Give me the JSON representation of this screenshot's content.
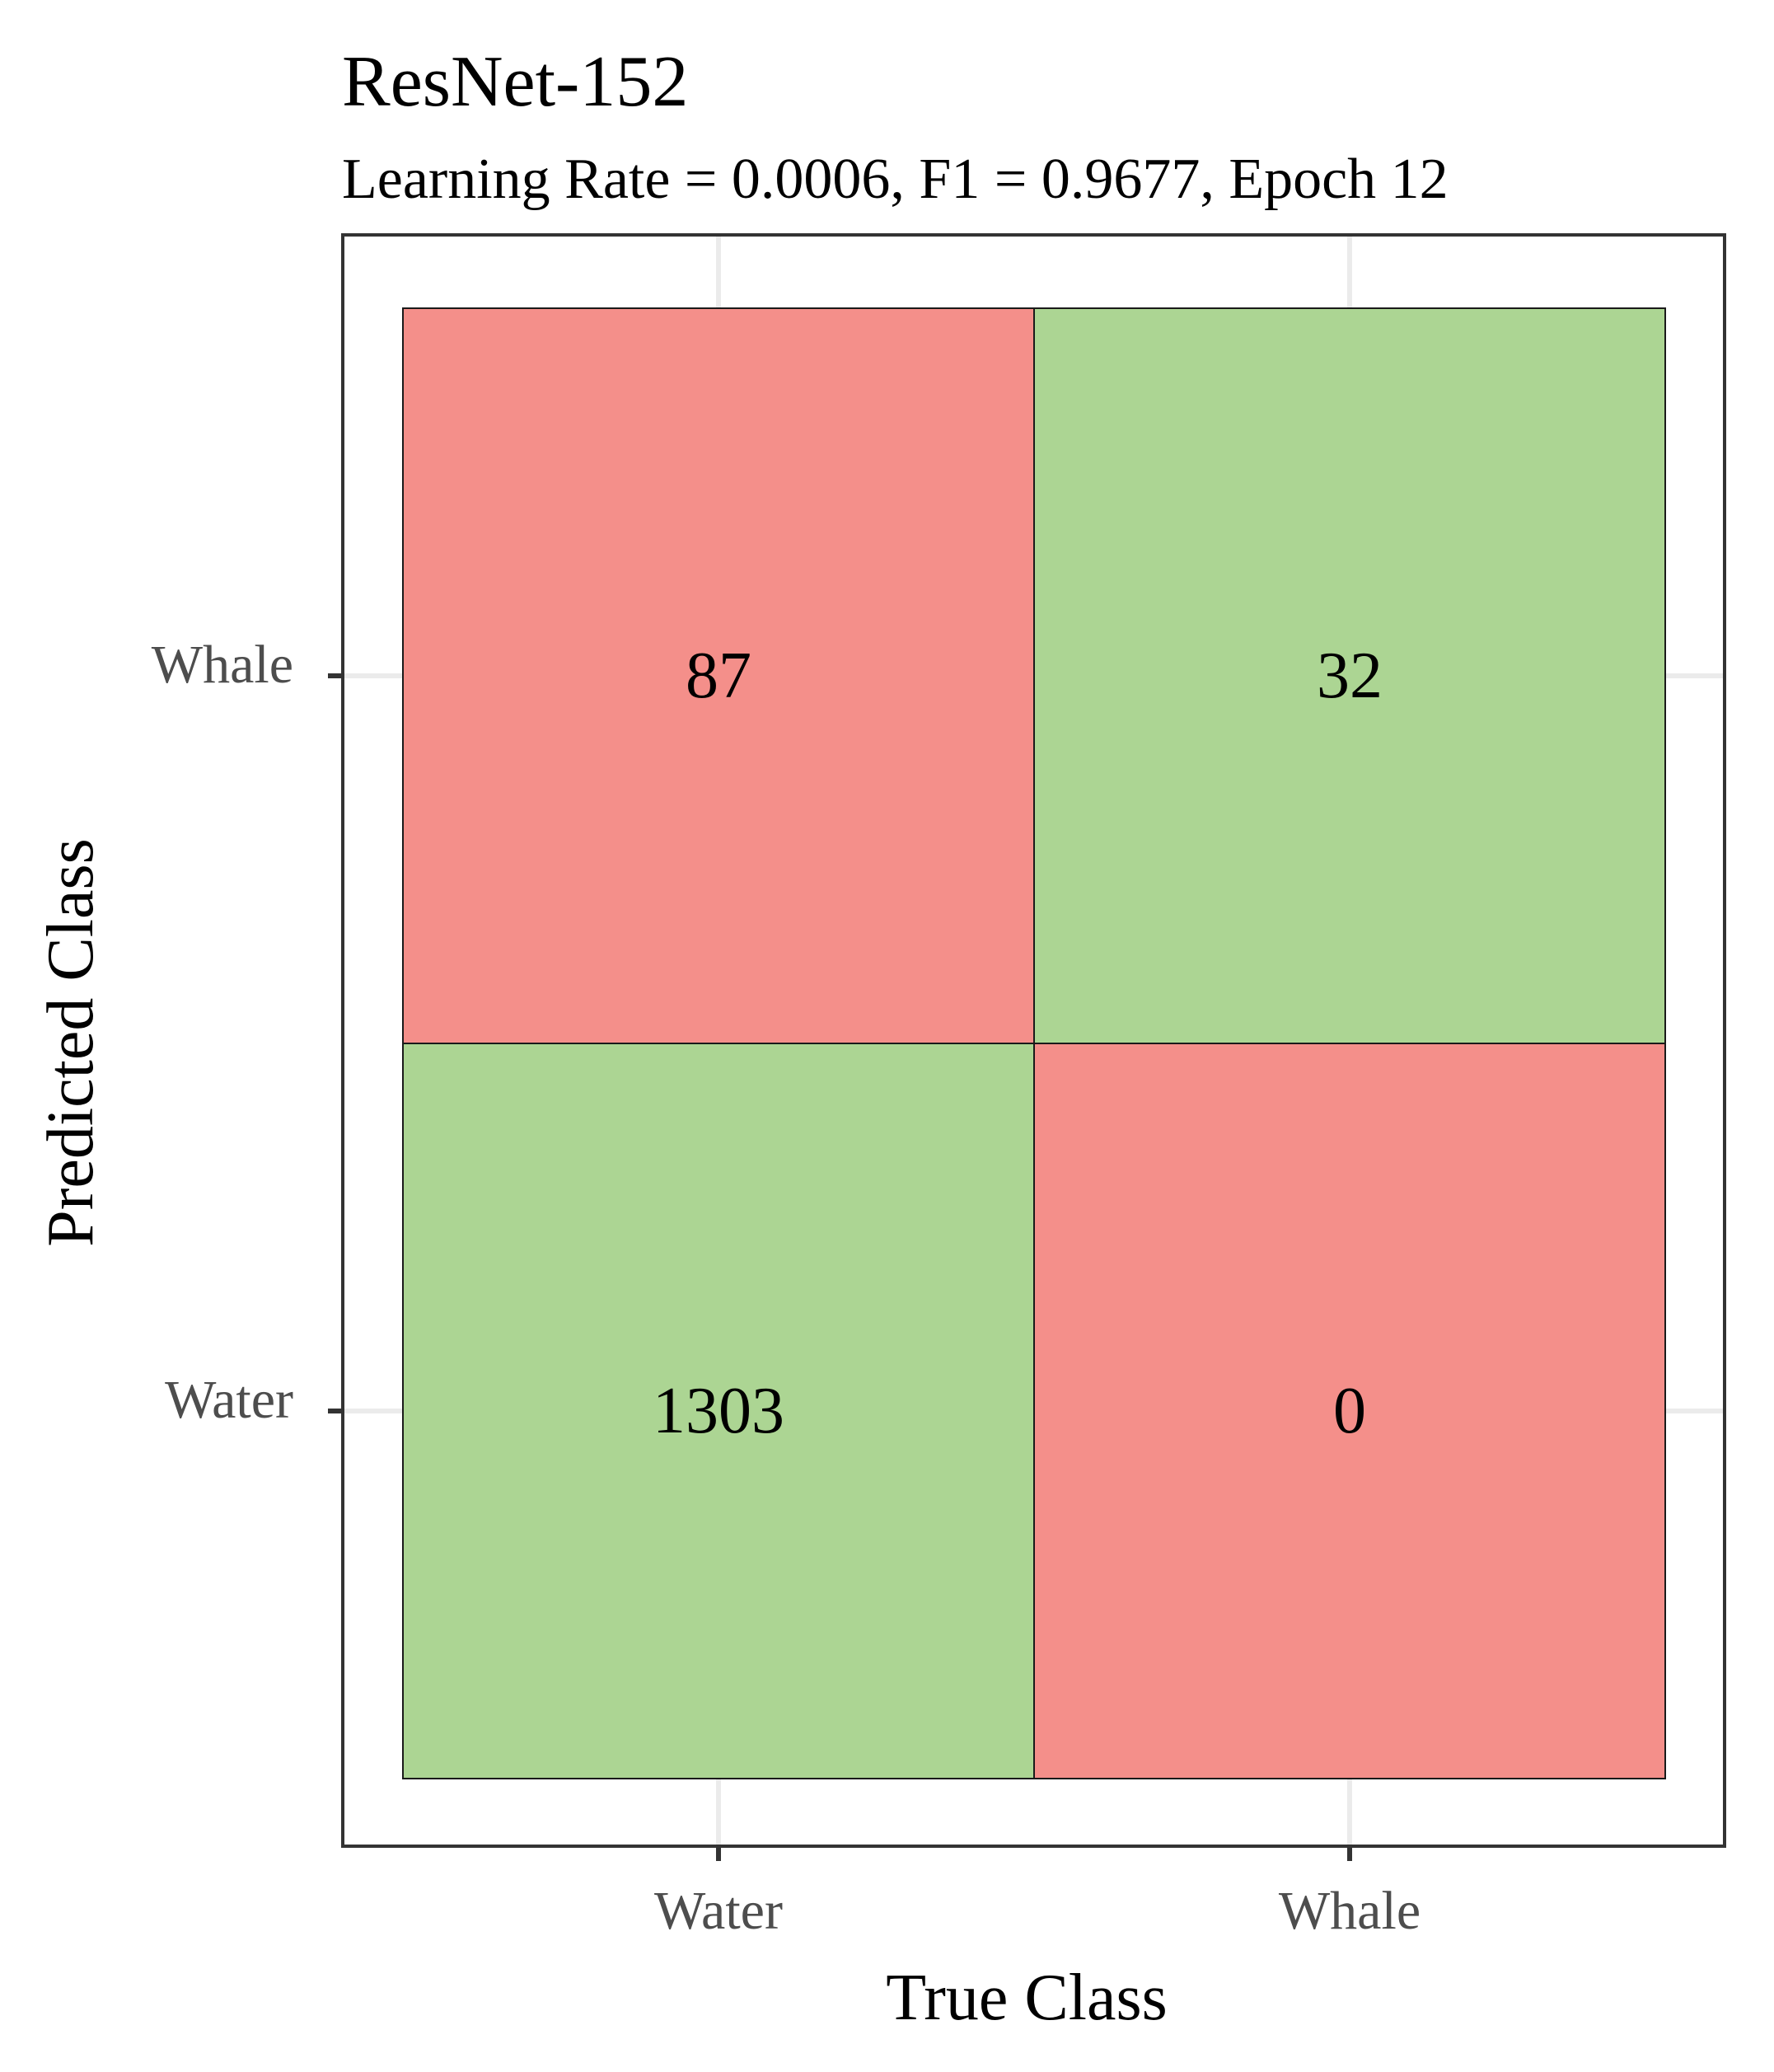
{
  "chart_data": {
    "type": "heatmap",
    "title": "ResNet-152",
    "subtitle": "Learning Rate = 0.0006, F1 = 0.9677, Epoch 12",
    "xlabel": "True Class",
    "ylabel": "Predicted Class",
    "x_categories": [
      "Water",
      "Whale"
    ],
    "y_categories": [
      "Water",
      "Whale"
    ],
    "cells": [
      {
        "true": "Water",
        "predicted": "Whale",
        "value": 87,
        "correct": false
      },
      {
        "true": "Whale",
        "predicted": "Whale",
        "value": 32,
        "correct": true
      },
      {
        "true": "Water",
        "predicted": "Water",
        "value": 1303,
        "correct": true
      },
      {
        "true": "Whale",
        "predicted": "Water",
        "value": 0,
        "correct": false
      }
    ],
    "grid": true,
    "legend": "none",
    "colors": {
      "correct": "#acd593",
      "incorrect": "#f48f8a",
      "panel_border": "#333333",
      "grid": "#ebebeb",
      "tick_label": "#4d4d4d",
      "text": "#000000"
    }
  }
}
